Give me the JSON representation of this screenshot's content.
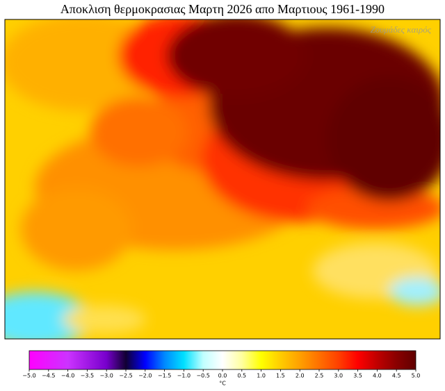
{
  "title": "Αποκλιση θερμοκρασιας Μαρτη 2026 απο Μαρτιους 1961-1990",
  "watermark": "Ζουμάδες καιρός",
  "colorbar": {
    "label": "°C",
    "lim": [
      -5,
      5
    ],
    "ticks": [
      {
        "value": -5,
        "label": "−5.0"
      },
      {
        "value": -4.5,
        "label": "−4.5"
      },
      {
        "value": -4,
        "label": "−4.0"
      },
      {
        "value": -3.5,
        "label": "−3.5"
      },
      {
        "value": -3,
        "label": "−3.0"
      },
      {
        "value": -2.5,
        "label": "−2.5"
      },
      {
        "value": -2,
        "label": "−2.0"
      },
      {
        "value": -1.5,
        "label": "−1.5"
      },
      {
        "value": -1,
        "label": "−1.0"
      },
      {
        "value": -0.5,
        "label": "−0.5"
      },
      {
        "value": 0,
        "label": "0.0"
      },
      {
        "value": 0.5,
        "label": "0.5"
      },
      {
        "value": 1,
        "label": "1.0"
      },
      {
        "value": 1.5,
        "label": "1.5"
      },
      {
        "value": 2,
        "label": "2.0"
      },
      {
        "value": 2.5,
        "label": "2.5"
      },
      {
        "value": 3,
        "label": "3.0"
      },
      {
        "value": 3.5,
        "label": "3.5"
      },
      {
        "value": 4,
        "label": "4.0"
      },
      {
        "value": 4.5,
        "label": "4.5"
      },
      {
        "value": 5,
        "label": "5.0"
      }
    ]
  }
}
